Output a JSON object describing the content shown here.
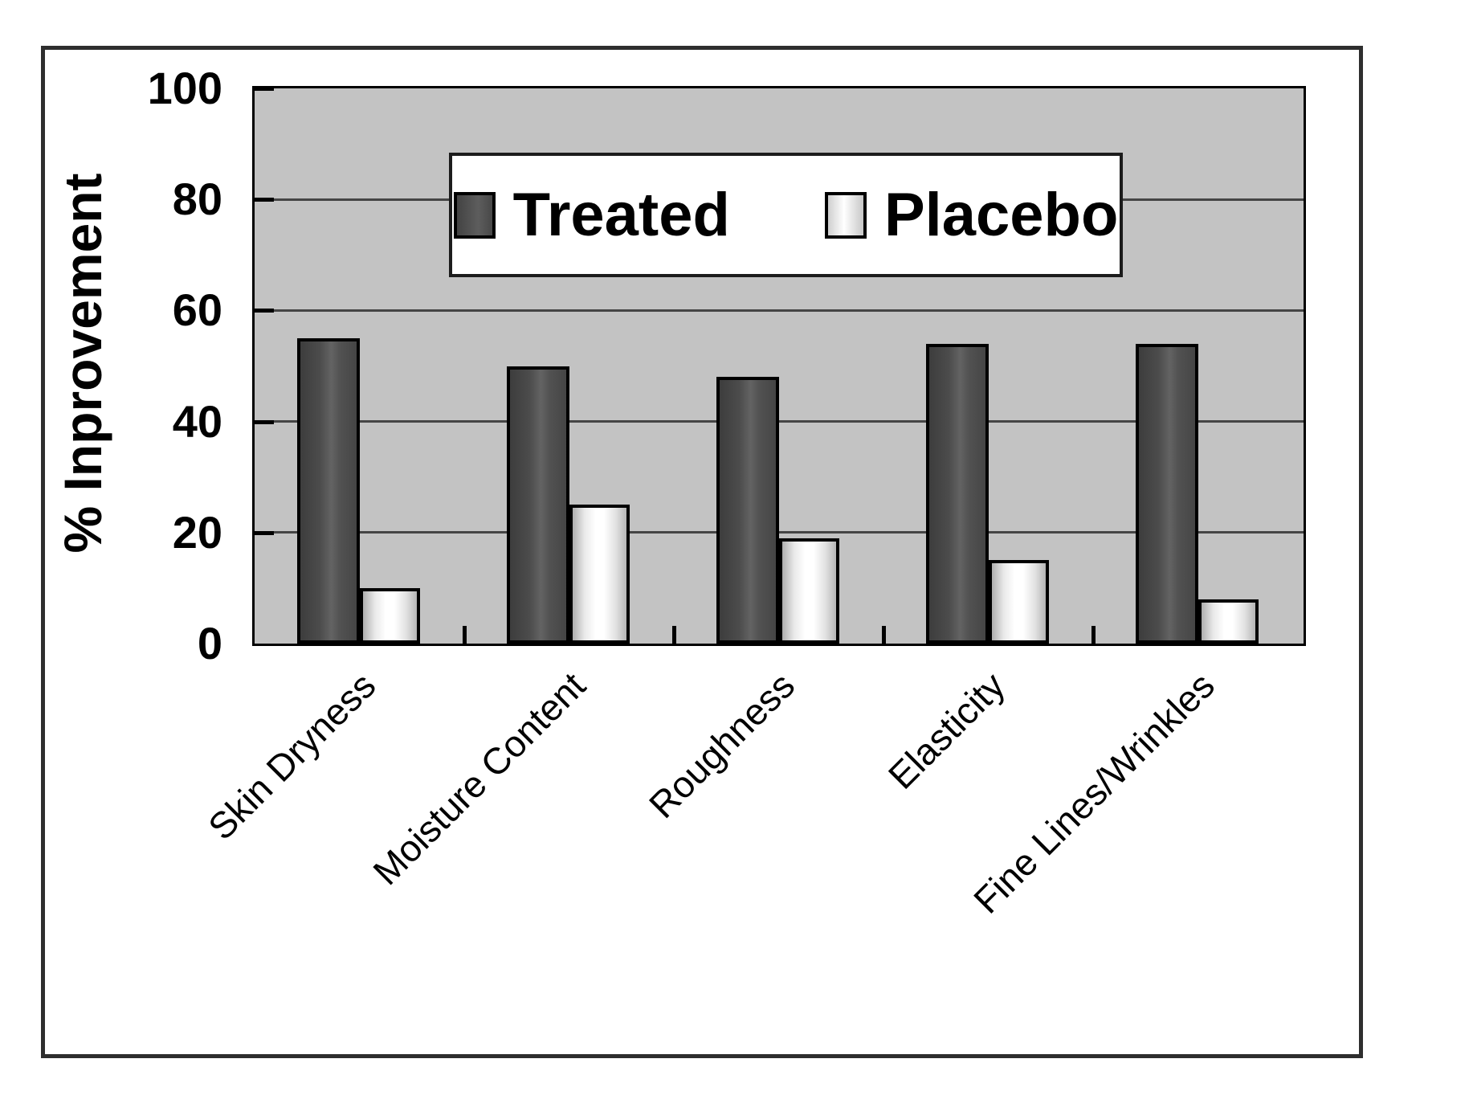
{
  "figure": {
    "background": "#ffffff",
    "border_color": "#2e2e2e",
    "plot_background": "#c3c3c3"
  },
  "chart_data": {
    "type": "bar",
    "title": "",
    "categories": [
      "Skin Dryness",
      "Moisture Content",
      "Roughness",
      "Elasticity",
      "Fine Lines/Wrinkles"
    ],
    "series": [
      {
        "name": "Treated",
        "values": [
          55,
          50,
          48,
          54,
          54
        ],
        "color": "#4a4a4a"
      },
      {
        "name": "Placebo",
        "values": [
          10,
          25,
          19,
          15,
          8
        ],
        "color": "#ffffff"
      }
    ],
    "xlabel": "",
    "ylabel": "% Inprovement",
    "ylim": [
      0,
      100
    ],
    "yticks": [
      0,
      20,
      40,
      60,
      80,
      100
    ],
    "grid": true,
    "gridline_color": "#454545",
    "bar_border_color": "#000000",
    "legend_position": "top-center",
    "legend_labels": [
      "Treated",
      "Placebo"
    ]
  }
}
